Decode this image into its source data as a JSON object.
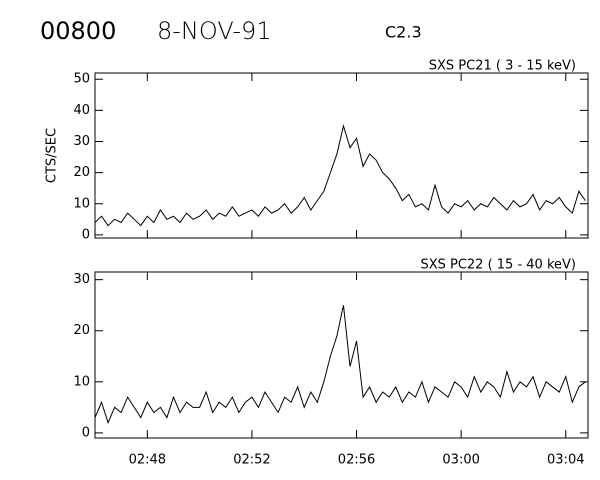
{
  "header": {
    "id": "00800",
    "date": "8-NOV-91",
    "class": "C2.3"
  },
  "chart_data": [
    {
      "type": "line",
      "title": "SXS PC21  (  3 - 15 keV)",
      "ylabel": "CTS/SEC",
      "color": "#000000",
      "x": [
        166,
        166.25,
        166.5,
        166.75,
        167,
        167.25,
        167.5,
        167.75,
        168,
        168.25,
        168.5,
        168.75,
        169,
        169.25,
        169.5,
        169.75,
        170,
        170.25,
        170.5,
        170.75,
        171,
        171.25,
        171.5,
        171.75,
        172,
        172.25,
        172.5,
        172.75,
        173,
        173.25,
        173.5,
        173.75,
        174,
        174.25,
        174.5,
        174.75,
        175,
        175.25,
        175.5,
        175.75,
        176,
        176.25,
        176.5,
        176.75,
        177,
        177.25,
        177.5,
        177.75,
        178,
        178.25,
        178.5,
        178.75,
        179,
        179.25,
        179.5,
        179.75,
        180,
        180.25,
        180.5,
        180.75,
        181,
        181.25,
        181.5,
        181.75,
        182,
        182.25,
        182.5,
        182.75,
        183,
        183.25,
        183.5,
        183.75,
        184,
        184.25,
        184.5,
        184.75
      ],
      "values": [
        4,
        6,
        3,
        5,
        4,
        7,
        5,
        3,
        6,
        4,
        8,
        5,
        6,
        4,
        7,
        5,
        6,
        8,
        5,
        7,
        6,
        9,
        6,
        7,
        8,
        6,
        9,
        7,
        8,
        10,
        7,
        9,
        12,
        8,
        11,
        14,
        20,
        26,
        35,
        28,
        31,
        22,
        26,
        24,
        20,
        18,
        15,
        11,
        13,
        9,
        10,
        8,
        16,
        9,
        7,
        10,
        9,
        11,
        8,
        10,
        9,
        12,
        10,
        8,
        11,
        9,
        10,
        13,
        8,
        11,
        10,
        12,
        9,
        7,
        14,
        11
      ],
      "xlim": [
        166,
        184.85
      ],
      "xticks": [
        168,
        172,
        176,
        180,
        184
      ],
      "ylim": [
        -1,
        52
      ],
      "yticks": [
        0,
        10,
        20,
        30,
        40,
        50
      ]
    },
    {
      "type": "line",
      "title": "SXS PC22  ( 15 - 40 keV)",
      "color": "#000000",
      "x": [
        166,
        166.25,
        166.5,
        166.75,
        167,
        167.25,
        167.5,
        167.75,
        168,
        168.25,
        168.5,
        168.75,
        169,
        169.25,
        169.5,
        169.75,
        170,
        170.25,
        170.5,
        170.75,
        171,
        171.25,
        171.5,
        171.75,
        172,
        172.25,
        172.5,
        172.75,
        173,
        173.25,
        173.5,
        173.75,
        174,
        174.25,
        174.5,
        174.75,
        175,
        175.25,
        175.5,
        175.75,
        176,
        176.25,
        176.5,
        176.75,
        177,
        177.25,
        177.5,
        177.75,
        178,
        178.25,
        178.5,
        178.75,
        179,
        179.25,
        179.5,
        179.75,
        180,
        180.25,
        180.5,
        180.75,
        181,
        181.25,
        181.5,
        181.75,
        182,
        182.25,
        182.5,
        182.75,
        183,
        183.25,
        183.5,
        183.75,
        184,
        184.25,
        184.5,
        184.75
      ],
      "values": [
        3,
        6,
        2,
        5,
        4,
        7,
        5,
        3,
        6,
        4,
        5,
        3,
        7,
        4,
        6,
        5,
        5,
        8,
        4,
        6,
        5,
        7,
        4,
        6,
        7,
        5,
        8,
        6,
        4,
        7,
        6,
        9,
        5,
        8,
        6,
        10,
        15,
        19,
        25,
        13,
        18,
        7,
        9,
        6,
        8,
        7,
        9,
        6,
        8,
        7,
        10,
        6,
        9,
        8,
        7,
        10,
        9,
        7,
        11,
        8,
        10,
        9,
        7,
        12,
        8,
        10,
        9,
        11,
        7,
        10,
        9,
        8,
        11,
        6,
        9,
        10
      ],
      "xlim": [
        166,
        184.85
      ],
      "xticks": [
        {
          "value": 168,
          "label": "02:48"
        },
        {
          "value": 172,
          "label": "02:52"
        },
        {
          "value": 176,
          "label": "02:56"
        },
        {
          "value": 180,
          "label": "03:00"
        },
        {
          "value": 184,
          "label": "03:04"
        }
      ],
      "ylim": [
        -1,
        31.5
      ],
      "yticks": [
        0,
        10,
        20,
        30
      ]
    }
  ]
}
